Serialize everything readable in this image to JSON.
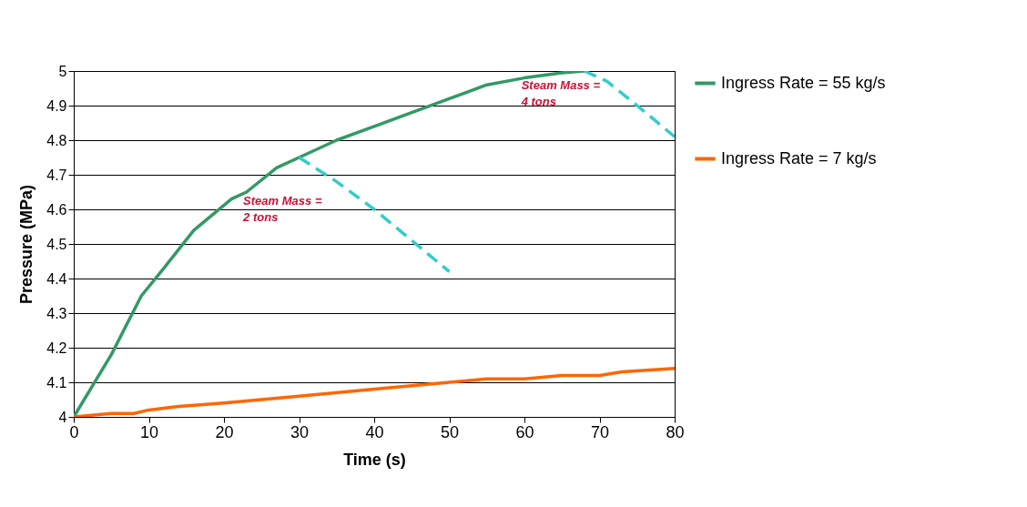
{
  "chart_data": {
    "type": "line",
    "xlabel": "Time (s)",
    "ylabel": "Pressure (MPa)",
    "xlim": [
      0,
      80
    ],
    "xticks": [
      0,
      10,
      20,
      30,
      40,
      50,
      60,
      70,
      80
    ],
    "ylim": [
      4,
      5
    ],
    "yticks": [
      4,
      4.1,
      4.2,
      4.3,
      4.4,
      4.5,
      4.6,
      4.7,
      4.8,
      4.9,
      5
    ],
    "grid": "y",
    "legend": "right",
    "marker": "none",
    "series": [
      {
        "name": "Ingress Rate = 55 kg/s",
        "color": "#339966",
        "line_style": "solid",
        "x": [
          0,
          5,
          9,
          12,
          16,
          21,
          23,
          27,
          30,
          35,
          40,
          45,
          50,
          55,
          60,
          65,
          68
        ],
        "values": [
          4,
          4.18,
          4.35,
          4.43,
          4.54,
          4.63,
          4.65,
          4.72,
          4.75,
          4.8,
          4.84,
          4.88,
          4.92,
          4.96,
          4.98,
          4.995,
          5
        ]
      },
      {
        "name": "Ingress Rate = 7 kg/s",
        "color": "#ff6600",
        "line_style": "solid",
        "x": [
          0,
          5,
          8,
          10,
          14,
          20,
          25,
          30,
          40,
          50,
          55,
          60,
          65,
          70,
          73,
          80
        ],
        "values": [
          4,
          4.01,
          4.01,
          4.02,
          4.03,
          4.04,
          4.05,
          4.06,
          4.08,
          4.1,
          4.11,
          4.11,
          4.12,
          4.12,
          4.13,
          4.14
        ]
      },
      {
        "color": "#33cccc",
        "line_style": "dashed",
        "x": [
          30,
          35,
          40,
          45,
          50
        ],
        "values": [
          4.75,
          4.68,
          4.6,
          4.51,
          4.42
        ]
      },
      {
        "color": "#33cccc",
        "line_style": "dashed",
        "x": [
          68,
          71,
          75,
          80
        ],
        "values": [
          5,
          4.97,
          4.9,
          4.81
        ]
      }
    ],
    "annotations": [
      "Steam Mass = 2 tons",
      "Steam Mass = 4 tons"
    ]
  }
}
